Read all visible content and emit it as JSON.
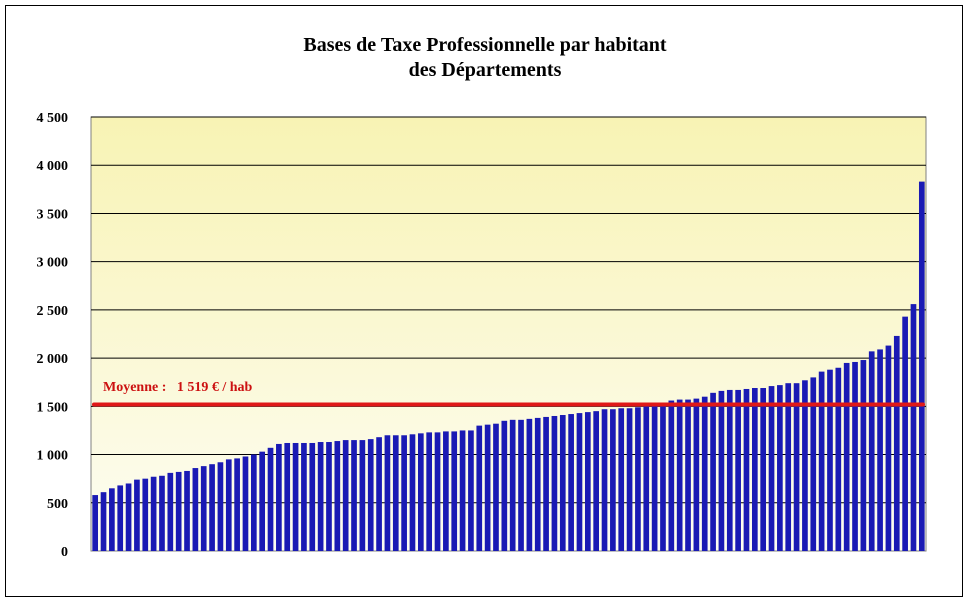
{
  "chart_data": {
    "type": "bar",
    "title": "Bases de Taxe Professionnelle par habitant",
    "subtitle": "des Départements",
    "xlabel": "",
    "ylabel": "",
    "ylim": [
      0,
      4500
    ],
    "yticks": [
      0,
      500,
      1000,
      1500,
      2000,
      2500,
      3000,
      3500,
      4000,
      4500
    ],
    "ytick_labels": [
      "0",
      "500",
      "1 000",
      "1 500",
      "2 000",
      "2 500",
      "3 000",
      "3 500",
      "4 000",
      "4 500"
    ],
    "grid": true,
    "bar_color": "#1a1ab4",
    "background_gradient": [
      "#fdfdf3",
      "#f8f3b4"
    ],
    "average": {
      "value": 1519,
      "label": "Moyenne :   1 519 € / hab",
      "color": "#e01818"
    },
    "values": [
      580,
      610,
      650,
      680,
      700,
      740,
      750,
      770,
      780,
      810,
      820,
      830,
      860,
      880,
      900,
      920,
      950,
      960,
      980,
      1000,
      1030,
      1070,
      1110,
      1120,
      1120,
      1120,
      1120,
      1130,
      1130,
      1140,
      1150,
      1150,
      1150,
      1160,
      1180,
      1200,
      1200,
      1200,
      1210,
      1220,
      1230,
      1230,
      1240,
      1240,
      1250,
      1250,
      1300,
      1310,
      1320,
      1350,
      1360,
      1360,
      1370,
      1380,
      1390,
      1400,
      1410,
      1420,
      1430,
      1440,
      1450,
      1470,
      1470,
      1480,
      1480,
      1490,
      1500,
      1510,
      1520,
      1560,
      1570,
      1570,
      1580,
      1600,
      1640,
      1660,
      1670,
      1670,
      1680,
      1690,
      1690,
      1710,
      1720,
      1740,
      1740,
      1770,
      1800,
      1860,
      1880,
      1900,
      1950,
      1960,
      1980,
      2070,
      2090,
      2130,
      2230,
      2430,
      2560,
      3830
    ]
  }
}
